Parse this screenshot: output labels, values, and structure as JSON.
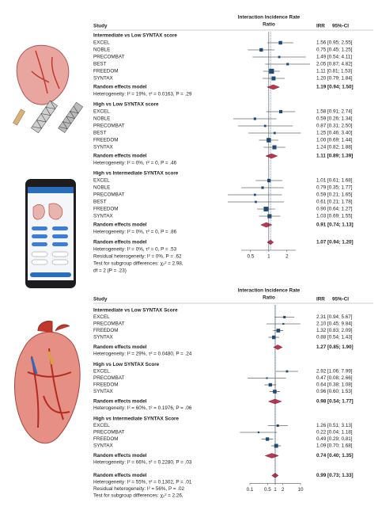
{
  "chart_data": [
    {
      "type": "forest",
      "log_scale": true,
      "null_line": 1,
      "header": {
        "study": "Study",
        "plot_title": [
          "Interaction Incidence Rate",
          "Ratio"
        ],
        "irr": "IRR",
        "ci": "95%-CI"
      },
      "xlim": [
        0.35,
        2.8
      ],
      "xticks": [
        0.5,
        1,
        2
      ],
      "square_color": "#1f4a78",
      "diamond_color": "#c2344f",
      "groups": [
        {
          "title": "Intermediate vs Low SYNTAX score",
          "studies": [
            {
              "name": "EXCEL",
              "irr": 1.56,
              "lo": 0.95,
              "hi": 2.55,
              "label": "1.56 [0.95; 2.55]"
            },
            {
              "name": "NOBLE",
              "irr": 0.75,
              "lo": 0.45,
              "hi": 1.25,
              "label": "0.75 [0.45; 1.25]"
            },
            {
              "name": "PRECOMBAT",
              "irr": 1.49,
              "lo": 0.54,
              "hi": 4.11,
              "label": "1.49 [0.54; 4.11]"
            },
            {
              "name": "BEST",
              "irr": 2.05,
              "lo": 0.87,
              "hi": 4.82,
              "label": "2.05 [0.87; 4.82]"
            },
            {
              "name": "FREEDOM",
              "irr": 1.11,
              "lo": 0.81,
              "hi": 1.53,
              "label": "1.11 [0.81; 1.53]"
            },
            {
              "name": "SYNTAX",
              "irr": 1.2,
              "lo": 0.79,
              "hi": 1.84,
              "label": "1.20 [0.79; 1.84]"
            }
          ],
          "pooled": {
            "name": "Random effects model",
            "irr": 1.19,
            "lo": 0.94,
            "hi": 1.5,
            "label": "1.19 [0.94; 1.50]"
          },
          "heterogeneity": "Heterogeneity: I² = 19%, τ² = 0.0163, P = .29"
        },
        {
          "title": "High vs Low SYNTAX score",
          "studies": [
            {
              "name": "EXCEL",
              "irr": 1.58,
              "lo": 0.91,
              "hi": 2.74,
              "label": "1.58 [0.91; 2.74]"
            },
            {
              "name": "NOBLE",
              "irr": 0.59,
              "lo": 0.26,
              "hi": 1.34,
              "label": "0.59 [0.26; 1.34]"
            },
            {
              "name": "PRECOMBAT",
              "irr": 0.87,
              "lo": 0.31,
              "hi": 2.5,
              "label": "0.87 [0.31; 2.50]"
            },
            {
              "name": "BEST",
              "irr": 1.25,
              "lo": 0.46,
              "hi": 3.4,
              "label": "1.25 [0.46; 3.40]"
            },
            {
              "name": "FREEDOM",
              "irr": 1.0,
              "lo": 0.69,
              "hi": 1.44,
              "label": "1.00 [0.69; 1.44]"
            },
            {
              "name": "SYNTAX",
              "irr": 1.24,
              "lo": 0.82,
              "hi": 1.88,
              "label": "1.24 [0.82; 1.88]"
            }
          ],
          "pooled": {
            "name": "Random effects model",
            "irr": 1.11,
            "lo": 0.89,
            "hi": 1.39,
            "label": "1.11 [0.89; 1.39]"
          },
          "heterogeneity": "Heterogeneity: I² = 0%, τ² = 0, P = .46"
        },
        {
          "title": "High vs Intermediate SYNTAX score",
          "studies": [
            {
              "name": "EXCEL",
              "irr": 1.01,
              "lo": 0.61,
              "hi": 1.68,
              "label": "1.01 [0.61; 1.68]"
            },
            {
              "name": "NOBLE",
              "irr": 0.79,
              "lo": 0.35,
              "hi": 1.77,
              "label": "0.79 [0.35; 1.77]"
            },
            {
              "name": "PRECOMBAT",
              "irr": 0.59,
              "lo": 0.21,
              "hi": 1.65,
              "label": "0.59 [0.21; 1.65]"
            },
            {
              "name": "BEST",
              "irr": 0.61,
              "lo": 0.21,
              "hi": 1.78,
              "label": "0.61 [0.21; 1.78]"
            },
            {
              "name": "FREEDOM",
              "irr": 0.9,
              "lo": 0.64,
              "hi": 1.27,
              "label": "0.90 [0.64; 1.27]"
            },
            {
              "name": "SYNTAX",
              "irr": 1.03,
              "lo": 0.69,
              "hi": 1.55,
              "label": "1.03 [0.69; 1.55]"
            }
          ],
          "pooled": {
            "name": "Random effects model",
            "irr": 0.91,
            "lo": 0.74,
            "hi": 1.13,
            "label": "0.91 [0.74; 1.13]"
          },
          "heterogeneity": "Heterogeneity: I² = 0%, τ² = 0, P = .86"
        }
      ],
      "overall": {
        "name": "Random effects model",
        "irr": 1.07,
        "lo": 0.94,
        "hi": 1.2,
        "label": "1.07 [0.94; 1.20]"
      },
      "notes": [
        "Heterogeneity: I² = 0%, τ² = 0, P = .53",
        "Residual heterogeneity: I² = 0%, P = .62",
        "Test for subgroup differences: χ₂² = 2.98,",
        "df = 2 (P = .23)"
      ]
    },
    {
      "type": "forest",
      "log_scale": true,
      "null_line": 1,
      "header": {
        "study": "Study",
        "plot_title": [
          "Interaction Incidence Rate",
          "Ratio"
        ],
        "irr": "IRR",
        "ci": "95%-CI"
      },
      "xlim": [
        0.1,
        10
      ],
      "xticks": [
        0.1,
        0.5,
        1,
        2,
        10
      ],
      "square_color": "#1f4a78",
      "diamond_color": "#c2344f",
      "groups": [
        {
          "title": "Intermediate vs Low SYNTAX Score",
          "studies": [
            {
              "name": "EXCEL",
              "irr": 2.31,
              "lo": 0.94,
              "hi": 5.67,
              "label": "2.31 [0.94; 5.67]"
            },
            {
              "name": "PRECOMBAT",
              "irr": 2.1,
              "lo": 0.45,
              "hi": 9.84,
              "label": "2.10 [0.45; 9.84]"
            },
            {
              "name": "FREEDOM",
              "irr": 1.32,
              "lo": 0.83,
              "hi": 2.09,
              "label": "1.32 [0.83; 2.09]"
            },
            {
              "name": "SYNTAX",
              "irr": 0.88,
              "lo": 0.54,
              "hi": 1.43,
              "label": "0.88 [0.54; 1.43]"
            }
          ],
          "pooled": {
            "name": "Random effects model",
            "irr": 1.27,
            "lo": 0.85,
            "hi": 1.9,
            "label": "1.27 [0.85; 1.90]"
          },
          "heterogeneity": "Heterogeneity: I² = 29%, τ² = 0.0480, P = .24"
        },
        {
          "title": "High vs Low SYNTAX Score",
          "studies": [
            {
              "name": "EXCEL",
              "irr": 2.92,
              "lo": 1.06,
              "hi": 7.99,
              "label": "2.92 [1.06; 7.99]"
            },
            {
              "name": "PRECOMBAT",
              "irr": 0.47,
              "lo": 0.08,
              "hi": 2.66,
              "label": "0.47 [0.08; 2.66]"
            },
            {
              "name": "FREEDOM",
              "irr": 0.64,
              "lo": 0.38,
              "hi": 1.08,
              "label": "0.64 [0.38; 1.08]"
            },
            {
              "name": "SYNTAX",
              "irr": 0.96,
              "lo": 0.6,
              "hi": 1.53,
              "label": "0.96 [0.60; 1.53]"
            }
          ],
          "pooled": {
            "name": "Random effects model",
            "irr": 0.98,
            "lo": 0.54,
            "hi": 1.77,
            "label": "0.98 [0.54; 1.77]"
          },
          "heterogeneity": "Heterogeneity: I² = 60%, τ² = 0.1976, P = .06"
        },
        {
          "title": "High vs Intermediate SYNTAX Score",
          "studies": [
            {
              "name": "EXCEL",
              "irr": 1.26,
              "lo": 0.51,
              "hi": 3.13,
              "label": "1.26 [0.51; 3.13]"
            },
            {
              "name": "PRECOMBAT",
              "irr": 0.22,
              "lo": 0.04,
              "hi": 1.18,
              "label": "0.22 [0.04; 1.18]"
            },
            {
              "name": "FREEDOM",
              "irr": 0.49,
              "lo": 0.29,
              "hi": 0.81,
              "label": "0.49 [0.29; 0.81]"
            },
            {
              "name": "SYNTAX",
              "irr": 1.09,
              "lo": 0.7,
              "hi": 1.68,
              "label": "1.09 [0.70; 1.68]"
            }
          ],
          "pooled": {
            "name": "Random effects model",
            "irr": 0.74,
            "lo": 0.4,
            "hi": 1.35,
            "label": "0.74 [0.40; 1.35]"
          },
          "heterogeneity": "Heterogeneity: I² = 66%, τ² = 0.2280, P = .03"
        }
      ],
      "overall": {
        "name": "Random effects model",
        "irr": 0.99,
        "lo": 0.73,
        "hi": 1.33,
        "label": "0.99 [0.73; 1.33]"
      },
      "notes": [
        "Heterogeneity: I² = 55%, τ² = 0.1302, P = .01",
        "Residual heterogeneity: I² = 56%, P = .02",
        "Test for subgroup differences: χ₂² = 2.26,"
      ]
    }
  ]
}
